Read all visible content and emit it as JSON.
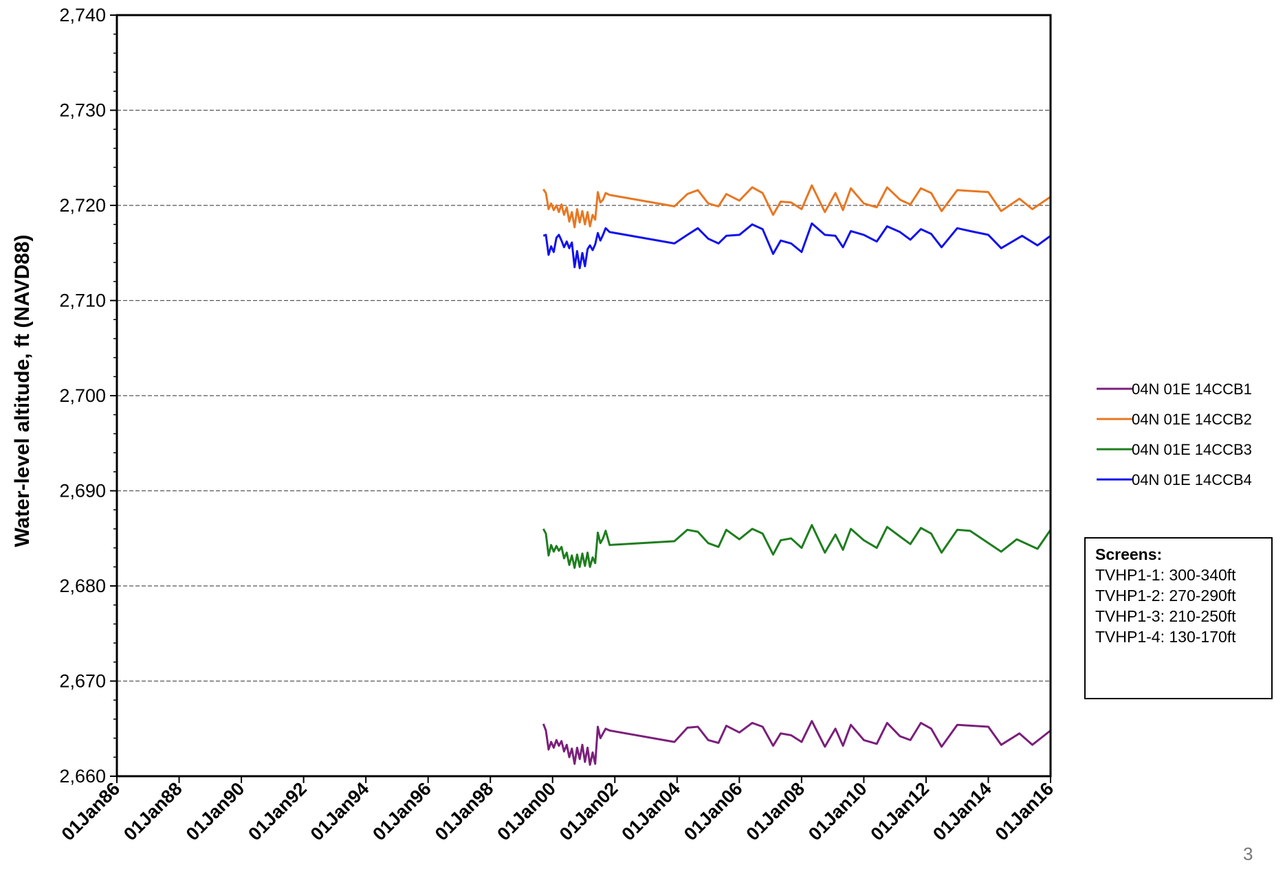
{
  "chart_data": {
    "type": "line",
    "title": "",
    "xlabel": "",
    "ylabel": "Water-level altitude, ft (NAVD88)",
    "ylim": [
      2660,
      2740
    ],
    "xlim": [
      "1986-01-01",
      "2016-01-01"
    ],
    "y_ticks": [
      "2,660",
      "2,670",
      "2,680",
      "2,690",
      "2,700",
      "2,710",
      "2,720",
      "2,730",
      "2,740"
    ],
    "x_ticks": [
      "01Jan86",
      "01Jan88",
      "01Jan90",
      "01Jan92",
      "01Jan94",
      "01Jan96",
      "01Jan98",
      "01Jan00",
      "01Jan02",
      "01Jan04",
      "01Jan06",
      "01Jan08",
      "01Jan10",
      "01Jan12",
      "01Jan14",
      "01Jan16"
    ],
    "grid": "horizontal dashed",
    "legend_position": "right",
    "series": [
      {
        "name": "04N 01E 14CCB1",
        "color": "#7B1F7B",
        "points": [
          [
            "1999-09-15",
            2665.5
          ],
          [
            "1999-10-15",
            2664.8
          ],
          [
            "1999-11-15",
            2662.8
          ],
          [
            "1999-12-15",
            2663.6
          ],
          [
            "2000-01-15",
            2663.0
          ],
          [
            "2000-02-15",
            2663.8
          ],
          [
            "2000-03-15",
            2663.2
          ],
          [
            "2000-04-15",
            2663.7
          ],
          [
            "2000-05-15",
            2662.6
          ],
          [
            "2000-06-15",
            2663.3
          ],
          [
            "2000-07-15",
            2662.0
          ],
          [
            "2000-08-15",
            2662.9
          ],
          [
            "2000-09-15",
            2661.3
          ],
          [
            "2000-10-15",
            2663.0
          ],
          [
            "2000-11-15",
            2661.8
          ],
          [
            "2000-12-15",
            2663.3
          ],
          [
            "2001-01-15",
            2661.5
          ],
          [
            "2001-02-15",
            2663.0
          ],
          [
            "2001-03-15",
            2661.2
          ],
          [
            "2001-04-15",
            2662.5
          ],
          [
            "2001-05-15",
            2661.3
          ],
          [
            "2001-06-15",
            2665.2
          ],
          [
            "2001-07-15",
            2664.0
          ],
          [
            "2001-08-15",
            2664.5
          ],
          [
            "2001-09-15",
            2665.0
          ],
          [
            "2001-11-01",
            2664.8
          ],
          [
            "2003-12-01",
            2663.6
          ],
          [
            "2004-05-01",
            2665.1
          ],
          [
            "2004-09-01",
            2665.2
          ],
          [
            "2005-01-01",
            2663.8
          ],
          [
            "2005-05-01",
            2663.5
          ],
          [
            "2005-08-01",
            2665.3
          ],
          [
            "2006-01-01",
            2664.6
          ],
          [
            "2006-06-01",
            2665.6
          ],
          [
            "2006-10-01",
            2665.2
          ],
          [
            "2007-02-01",
            2663.2
          ],
          [
            "2007-05-01",
            2664.5
          ],
          [
            "2007-09-01",
            2664.3
          ],
          [
            "2008-01-01",
            2663.6
          ],
          [
            "2008-05-01",
            2665.8
          ],
          [
            "2008-10-01",
            2663.1
          ],
          [
            "2009-02-01",
            2665.0
          ],
          [
            "2009-05-01",
            2663.2
          ],
          [
            "2009-08-01",
            2665.4
          ],
          [
            "2010-01-01",
            2663.8
          ],
          [
            "2010-06-01",
            2663.4
          ],
          [
            "2010-10-01",
            2665.6
          ],
          [
            "2011-03-01",
            2664.2
          ],
          [
            "2011-07-01",
            2663.8
          ],
          [
            "2011-11-01",
            2665.6
          ],
          [
            "2012-03-01",
            2665.0
          ],
          [
            "2012-07-01",
            2663.1
          ],
          [
            "2013-01-01",
            2665.4
          ],
          [
            "2014-01-01",
            2665.2
          ],
          [
            "2014-06-01",
            2663.3
          ],
          [
            "2015-01-01",
            2664.5
          ],
          [
            "2015-06-01",
            2663.3
          ],
          [
            "2016-01-01",
            2664.8
          ]
        ]
      },
      {
        "name": "04N 01E 14CCB2",
        "color": "#E87722",
        "points": [
          [
            "1999-09-15",
            2721.7
          ],
          [
            "1999-10-15",
            2721.3
          ],
          [
            "1999-11-15",
            2719.6
          ],
          [
            "1999-12-15",
            2720.2
          ],
          [
            "2000-01-15",
            2719.5
          ],
          [
            "2000-02-15",
            2720.0
          ],
          [
            "2000-03-15",
            2719.3
          ],
          [
            "2000-04-15",
            2720.1
          ],
          [
            "2000-05-15",
            2719.0
          ],
          [
            "2000-06-15",
            2719.8
          ],
          [
            "2000-07-15",
            2718.3
          ],
          [
            "2000-08-15",
            2719.3
          ],
          [
            "2000-09-15",
            2717.7
          ],
          [
            "2000-10-15",
            2719.6
          ],
          [
            "2000-11-15",
            2718.2
          ],
          [
            "2000-12-15",
            2719.4
          ],
          [
            "2001-01-15",
            2718.0
          ],
          [
            "2001-02-15",
            2719.3
          ],
          [
            "2001-03-15",
            2717.8
          ],
          [
            "2001-04-15",
            2719.0
          ],
          [
            "2001-05-15",
            2718.5
          ],
          [
            "2001-06-15",
            2721.4
          ],
          [
            "2001-07-15",
            2720.3
          ],
          [
            "2001-08-15",
            2720.6
          ],
          [
            "2001-09-15",
            2721.3
          ],
          [
            "2001-11-01",
            2721.1
          ],
          [
            "2003-12-01",
            2719.9
          ],
          [
            "2004-05-01",
            2721.2
          ],
          [
            "2004-09-01",
            2721.6
          ],
          [
            "2005-01-01",
            2720.2
          ],
          [
            "2005-05-01",
            2719.9
          ],
          [
            "2005-08-01",
            2721.2
          ],
          [
            "2006-01-01",
            2720.5
          ],
          [
            "2006-06-01",
            2721.9
          ],
          [
            "2006-10-01",
            2721.3
          ],
          [
            "2007-02-01",
            2719.0
          ],
          [
            "2007-05-01",
            2720.4
          ],
          [
            "2007-09-01",
            2720.3
          ],
          [
            "2008-01-01",
            2719.6
          ],
          [
            "2008-05-01",
            2722.1
          ],
          [
            "2008-10-01",
            2719.3
          ],
          [
            "2009-02-01",
            2721.3
          ],
          [
            "2009-05-01",
            2719.5
          ],
          [
            "2009-08-01",
            2721.8
          ],
          [
            "2010-01-01",
            2720.2
          ],
          [
            "2010-06-01",
            2719.8
          ],
          [
            "2010-10-01",
            2721.9
          ],
          [
            "2011-03-01",
            2720.6
          ],
          [
            "2011-07-01",
            2720.1
          ],
          [
            "2011-11-01",
            2721.8
          ],
          [
            "2012-03-01",
            2721.3
          ],
          [
            "2012-07-01",
            2719.4
          ],
          [
            "2013-01-01",
            2721.6
          ],
          [
            "2014-01-01",
            2721.4
          ],
          [
            "2014-06-01",
            2719.4
          ],
          [
            "2015-01-01",
            2720.7
          ],
          [
            "2015-06-01",
            2719.6
          ],
          [
            "2016-01-01",
            2720.9
          ]
        ]
      },
      {
        "name": "04N 01E 14CCB3",
        "color": "#1E7E1E",
        "points": [
          [
            "1999-09-15",
            2686.0
          ],
          [
            "1999-10-15",
            2685.5
          ],
          [
            "1999-11-15",
            2683.2
          ],
          [
            "1999-12-15",
            2684.3
          ],
          [
            "2000-01-15",
            2683.6
          ],
          [
            "2000-02-15",
            2684.2
          ],
          [
            "2000-03-15",
            2683.7
          ],
          [
            "2000-04-15",
            2684.1
          ],
          [
            "2000-05-15",
            2682.9
          ],
          [
            "2000-06-15",
            2683.5
          ],
          [
            "2000-07-15",
            2682.2
          ],
          [
            "2000-08-15",
            2683.2
          ],
          [
            "2000-09-15",
            2681.9
          ],
          [
            "2000-10-15",
            2683.3
          ],
          [
            "2000-11-15",
            2682.0
          ],
          [
            "2000-12-15",
            2683.4
          ],
          [
            "2001-01-15",
            2682.1
          ],
          [
            "2001-02-15",
            2683.5
          ],
          [
            "2001-03-15",
            2682.0
          ],
          [
            "2001-04-15",
            2683.0
          ],
          [
            "2001-05-15",
            2682.4
          ],
          [
            "2001-06-15",
            2685.6
          ],
          [
            "2001-07-15",
            2684.5
          ],
          [
            "2001-08-15",
            2685.0
          ],
          [
            "2001-09-15",
            2685.8
          ],
          [
            "2001-11-01",
            2684.3
          ],
          [
            "2003-12-01",
            2684.7
          ],
          [
            "2004-05-01",
            2685.9
          ],
          [
            "2004-09-01",
            2685.7
          ],
          [
            "2005-01-01",
            2684.5
          ],
          [
            "2005-05-01",
            2684.1
          ],
          [
            "2005-08-01",
            2685.9
          ],
          [
            "2006-01-01",
            2684.9
          ],
          [
            "2006-06-01",
            2686.0
          ],
          [
            "2006-10-01",
            2685.5
          ],
          [
            "2007-02-01",
            2683.3
          ],
          [
            "2007-05-01",
            2684.8
          ],
          [
            "2007-09-01",
            2685.0
          ],
          [
            "2008-01-01",
            2684.0
          ],
          [
            "2008-05-01",
            2686.4
          ],
          [
            "2008-10-01",
            2683.5
          ],
          [
            "2009-02-01",
            2685.4
          ],
          [
            "2009-05-01",
            2683.8
          ],
          [
            "2009-08-01",
            2686.0
          ],
          [
            "2010-01-01",
            2684.8
          ],
          [
            "2010-06-01",
            2684.0
          ],
          [
            "2010-10-01",
            2686.2
          ],
          [
            "2011-03-01",
            2685.2
          ],
          [
            "2011-07-01",
            2684.4
          ],
          [
            "2011-11-01",
            2686.1
          ],
          [
            "2012-03-01",
            2685.5
          ],
          [
            "2012-07-01",
            2683.5
          ],
          [
            "2013-01-01",
            2685.9
          ],
          [
            "2013-06-01",
            2685.8
          ],
          [
            "2014-06-01",
            2683.6
          ],
          [
            "2014-12-01",
            2684.9
          ],
          [
            "2015-08-01",
            2683.9
          ],
          [
            "2016-01-01",
            2685.9
          ]
        ]
      },
      {
        "name": "04N 01E 14CCB4",
        "color": "#1010EE",
        "points": [
          [
            "1999-09-15",
            2716.8
          ],
          [
            "1999-10-15",
            2716.9
          ],
          [
            "1999-11-15",
            2714.8
          ],
          [
            "1999-12-15",
            2715.7
          ],
          [
            "2000-01-15",
            2715.1
          ],
          [
            "2000-02-15",
            2716.6
          ],
          [
            "2000-03-15",
            2716.9
          ],
          [
            "2000-04-15",
            2716.3
          ],
          [
            "2000-05-15",
            2715.6
          ],
          [
            "2000-06-15",
            2716.2
          ],
          [
            "2000-07-15",
            2715.5
          ],
          [
            "2000-08-15",
            2716.1
          ],
          [
            "2000-09-15",
            2713.5
          ],
          [
            "2000-10-15",
            2715.2
          ],
          [
            "2000-11-15",
            2713.4
          ],
          [
            "2000-12-15",
            2715.0
          ],
          [
            "2001-01-15",
            2713.6
          ],
          [
            "2001-02-15",
            2715.4
          ],
          [
            "2001-03-15",
            2715.8
          ],
          [
            "2001-04-15",
            2715.3
          ],
          [
            "2001-05-15",
            2715.9
          ],
          [
            "2001-06-15",
            2717.1
          ],
          [
            "2001-07-15",
            2716.3
          ],
          [
            "2001-08-15",
            2716.9
          ],
          [
            "2001-09-15",
            2717.6
          ],
          [
            "2001-11-01",
            2717.2
          ],
          [
            "2003-12-01",
            2716.0
          ],
          [
            "2004-05-01",
            2716.9
          ],
          [
            "2004-09-01",
            2717.6
          ],
          [
            "2005-01-01",
            2716.5
          ],
          [
            "2005-05-01",
            2716.0
          ],
          [
            "2005-08-01",
            2716.8
          ],
          [
            "2006-01-01",
            2716.9
          ],
          [
            "2006-06-01",
            2718.0
          ],
          [
            "2006-10-01",
            2717.5
          ],
          [
            "2007-02-01",
            2714.9
          ],
          [
            "2007-05-01",
            2716.3
          ],
          [
            "2007-09-01",
            2716.0
          ],
          [
            "2008-01-01",
            2715.1
          ],
          [
            "2008-05-01",
            2718.1
          ],
          [
            "2008-10-01",
            2716.9
          ],
          [
            "2009-02-01",
            2716.8
          ],
          [
            "2009-05-01",
            2715.6
          ],
          [
            "2009-08-01",
            2717.3
          ],
          [
            "2010-01-01",
            2716.9
          ],
          [
            "2010-06-01",
            2716.2
          ],
          [
            "2010-10-01",
            2717.8
          ],
          [
            "2011-03-01",
            2717.2
          ],
          [
            "2011-07-01",
            2716.4
          ],
          [
            "2011-11-01",
            2717.5
          ],
          [
            "2012-03-01",
            2717.0
          ],
          [
            "2012-07-01",
            2715.6
          ],
          [
            "2013-01-01",
            2717.6
          ],
          [
            "2013-06-01",
            2717.3
          ],
          [
            "2014-01-01",
            2716.9
          ],
          [
            "2014-06-01",
            2715.5
          ],
          [
            "2015-02-01",
            2716.8
          ],
          [
            "2015-08-01",
            2715.8
          ],
          [
            "2016-01-01",
            2716.8
          ]
        ]
      }
    ]
  },
  "screens_box": {
    "title": "Screens:",
    "lines": [
      "TVHP1-1: 300-340ft",
      "TVHP1-2: 270-290ft",
      "TVHP1-3: 210-250ft",
      "TVHP1-4: 130-170ft"
    ]
  },
  "page_number": "3"
}
